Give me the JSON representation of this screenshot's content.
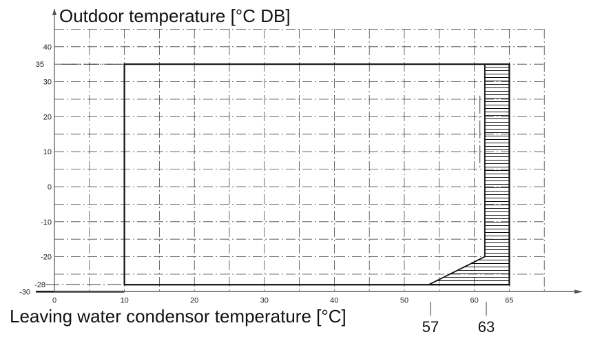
{
  "chart_data": {
    "type": "area",
    "title": "Outdoor temperature [°C DB]",
    "xlabel": "Leaving water condensor temperature [°C]",
    "ylabel": "",
    "xlim": [
      -5,
      75
    ],
    "ylim": [
      -30,
      45
    ],
    "grid": true,
    "x_ticks": [
      "0",
      "10",
      "20",
      "30",
      "40",
      "50",
      "60",
      "65"
    ],
    "y_ticks": [
      "40",
      "30",
      "20",
      "10",
      "0",
      "-10",
      "-20"
    ],
    "extra_y_labels": [
      "35",
      "-28",
      "-30"
    ],
    "extra_x_labels": [
      "57",
      "63"
    ],
    "operating_envelope": {
      "x": [
        10,
        65,
        65,
        53.5,
        10
      ],
      "y": [
        35,
        35,
        -28,
        -28,
        -28
      ]
    },
    "hatched_region": {
      "x": [
        61.5,
        65,
        65,
        53.5,
        61.5
      ],
      "y": [
        35,
        35,
        -28,
        -28,
        -20
      ]
    }
  }
}
